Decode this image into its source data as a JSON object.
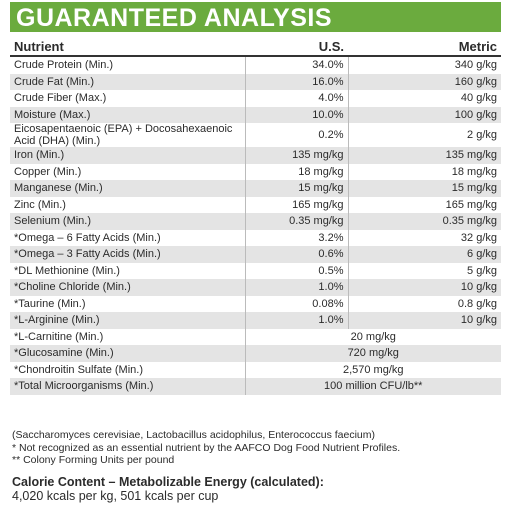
{
  "header": {
    "title": "GUARANTEED ANALYSIS"
  },
  "table": {
    "columns": [
      "Nutrient",
      "U.S.",
      "Metric"
    ],
    "rows": [
      [
        "Crude Protein (Min.)",
        "34.0%",
        "340 g/kg"
      ],
      [
        "Crude Fat (Min.)",
        "16.0%",
        "160 g/kg"
      ],
      [
        "Crude Fiber (Max.)",
        "4.0%",
        "40 g/kg"
      ],
      [
        "Moisture (Max.)",
        "10.0%",
        "100 g/kg"
      ],
      [
        "Eicosapentaenoic (EPA) + Docosahexaenoic Acid (DHA) (Min.)",
        "0.2%",
        "2 g/kg"
      ],
      [
        "Iron (Min.)",
        "135 mg/kg",
        "135 mg/kg"
      ],
      [
        "Copper (Min.)",
        "18 mg/kg",
        "18 mg/kg"
      ],
      [
        "Manganese (Min.)",
        "15 mg/kg",
        "15 mg/kg"
      ],
      [
        "Zinc (Min.)",
        "165 mg/kg",
        "165 mg/kg"
      ],
      [
        "Selenium (Min.)",
        "0.35 mg/kg",
        "0.35 mg/kg"
      ],
      [
        "*Omega – 6 Fatty Acids (Min.)",
        "3.2%",
        "32 g/kg"
      ],
      [
        "*Omega – 3 Fatty Acids (Min.)",
        "0.6%",
        "6 g/kg"
      ],
      [
        "*DL Methionine (Min.)",
        "0.5%",
        "5 g/kg"
      ],
      [
        "*Choline Chloride (Min.)",
        "1.0%",
        "10 g/kg"
      ],
      [
        "*Taurine (Min.)",
        "0.08%",
        "0.8 g/kg"
      ],
      [
        "*L-Arginine (Min.)",
        "1.0%",
        "10 g/kg"
      ],
      [
        "*L-Carnitine (Min.)",
        "20 mg/kg"
      ],
      [
        "*Glucosamine (Min.)",
        "720 mg/kg"
      ],
      [
        "*Chondroitin Sulfate (Min.)",
        "2,570 mg/kg"
      ],
      [
        "*Total Microorganisms (Min.)",
        "100 million CFU/lb**"
      ]
    ]
  },
  "footnotes": [
    "(Saccharomyces cerevisiae, Lactobacillus acidophilus, Enterococcus faecium)",
    "* Not recognized as an essential nutrient by the AAFCO Dog Food Nutrient Profiles.",
    "** Colony Forming Units per pound"
  ],
  "calorie": {
    "title": "Calorie Content – Metabolizable Energy (calculated):",
    "text": "4,020 kcals per kg, 501 kcals per cup"
  }
}
